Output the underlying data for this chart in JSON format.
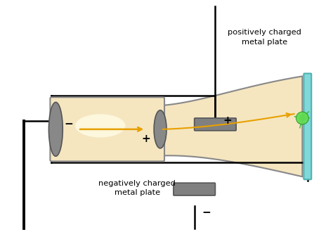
{
  "bg_color": "#ffffff",
  "tube_color": "#f5e6c0",
  "tube_highlight": "#fffde8",
  "tube_border": "#888888",
  "electrode_color": "#888888",
  "wire_color": "#000000",
  "beam_color": "#e8a000",
  "screen_color": "#80d8d8",
  "spark_color": "#44cc44",
  "plate_color": "#808080",
  "text_color": "#000000",
  "pos_label": "positively charged\nmetal plate",
  "neg_label": "negatively charged\nmetal plate",
  "plus_sign": "+",
  "minus_sign": "−",
  "cathode_minus": "−",
  "anode_plus": "+"
}
